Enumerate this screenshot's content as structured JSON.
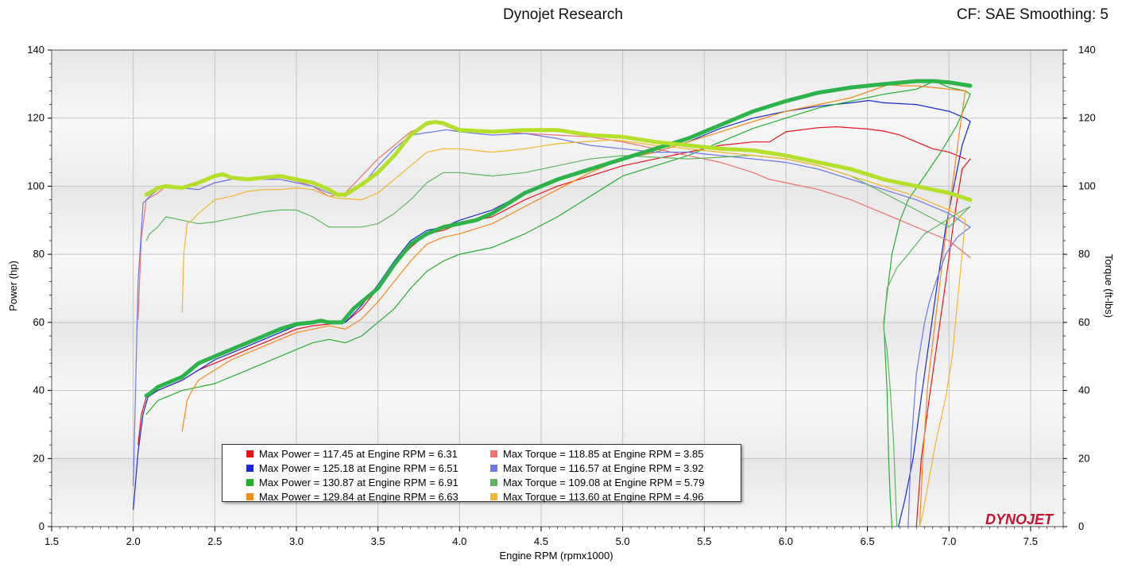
{
  "header": {
    "title": "Dynojet Research",
    "cf": "CF: SAE Smoothing: 5"
  },
  "logo": "DYNOJET",
  "chart_data": {
    "type": "line",
    "title": "Dynojet Research",
    "xlabel": "Engine RPM (rpmx1000)",
    "ylabel": "Power (hp)",
    "y2label": "Torque (ft-lbs)",
    "xlim": [
      1.5,
      7.7
    ],
    "ylim": [
      0,
      140
    ],
    "y2lim": [
      0,
      140
    ],
    "xticks": [
      1.5,
      2.0,
      2.5,
      3.0,
      3.5,
      4.0,
      4.5,
      5.0,
      5.5,
      6.0,
      6.5,
      7.0,
      7.5
    ],
    "xtick_labels": [
      "1.5",
      "2.0",
      "2.5",
      "3.0",
      "3.5",
      "4.0",
      "4.5",
      "5.0",
      "5.5",
      "6.0",
      "6.5",
      "7.0",
      "7.5"
    ],
    "yticks": [
      0,
      20,
      40,
      60,
      80,
      100,
      120,
      140
    ],
    "ytick_labels": [
      "0",
      "20",
      "40",
      "60",
      "80",
      "100",
      "120",
      "140"
    ],
    "colors": {
      "power_red": "#e8141c",
      "power_blue": "#1a28d8",
      "power_green": "#22b12c",
      "power_orange": "#f58a18",
      "torque_red": "#f07070",
      "torque_blue": "#6b78ee",
      "torque_green": "#5cb85c",
      "torque_yellow": "#f7b42c",
      "highlight_power": "#2cb34a",
      "highlight_torque": "#b4e02c"
    },
    "series": [
      {
        "key": "power_red",
        "axis": "left",
        "width": 1.2,
        "x": [
          2.03,
          2.05,
          2.08,
          2.15,
          2.2,
          2.3,
          2.4,
          2.5,
          2.6,
          2.7,
          2.8,
          2.9,
          3.0,
          3.1,
          3.2,
          3.3,
          3.4,
          3.5,
          3.6,
          3.7,
          3.8,
          3.9,
          4.0,
          4.2,
          4.4,
          4.5,
          4.6,
          4.8,
          5.0,
          5.2,
          5.4,
          5.6,
          5.8,
          5.9,
          6.0,
          6.2,
          6.31,
          6.5,
          6.6,
          6.7,
          6.8,
          6.9,
          7.0,
          7.1
        ],
        "y": [
          24,
          33,
          38,
          40,
          41,
          43,
          46,
          48,
          50,
          52,
          54,
          56,
          58,
          59,
          59.5,
          60,
          64,
          70,
          77,
          82,
          86,
          87,
          89,
          91,
          96,
          98,
          100,
          103,
          106,
          108,
          110,
          112,
          113,
          113,
          116,
          117.2,
          117.45,
          116.8,
          116.2,
          115,
          113,
          111,
          110,
          108
        ]
      },
      {
        "key": "power_red_drop",
        "axis": "left",
        "width": 1.2,
        "x": [
          7.13,
          7.08,
          7.03,
          6.98,
          6.93,
          6.88,
          6.83,
          6.8
        ],
        "y": [
          108,
          105,
          90,
          72,
          55,
          38,
          20,
          0
        ]
      },
      {
        "key": "power_blue",
        "axis": "left",
        "width": 1.2,
        "x": [
          2.0,
          2.03,
          2.06,
          2.09,
          2.15,
          2.2,
          2.3,
          2.4,
          2.5,
          2.6,
          2.7,
          2.8,
          2.9,
          3.0,
          3.1,
          3.2,
          3.3,
          3.4,
          3.5,
          3.6,
          3.7,
          3.8,
          3.9,
          4.0,
          4.2,
          4.4,
          4.6,
          4.8,
          5.0,
          5.2,
          5.4,
          5.6,
          5.8,
          6.0,
          6.2,
          6.4,
          6.51,
          6.6,
          6.8,
          7.0,
          7.1,
          7.13
        ],
        "y": [
          5,
          22,
          33,
          38,
          40,
          41,
          43,
          46,
          49,
          51,
          53,
          55,
          57,
          59,
          60,
          60,
          60,
          65,
          71,
          78,
          84,
          87,
          88,
          90,
          93,
          98,
          102,
          105,
          108,
          110,
          113,
          117,
          120,
          122,
          123.5,
          124.5,
          125.18,
          124.5,
          124,
          122,
          120,
          119
        ]
      },
      {
        "key": "power_blue_drop",
        "axis": "left",
        "width": 1.2,
        "x": [
          7.13,
          7.08,
          7.03,
          6.98,
          6.93,
          6.88,
          6.83,
          6.78,
          6.73,
          6.69
        ],
        "y": [
          119,
          112,
          100,
          88,
          72,
          55,
          38,
          20,
          8,
          0
        ]
      },
      {
        "key": "power_green",
        "axis": "left",
        "width": 1.2,
        "x": [
          2.08,
          2.15,
          2.2,
          2.3,
          2.4,
          2.5,
          2.6,
          2.7,
          2.8,
          2.9,
          3.0,
          3.1,
          3.2,
          3.3,
          3.4,
          3.5,
          3.6,
          3.7,
          3.8,
          3.9,
          4.0,
          4.2,
          4.4,
          4.6,
          4.8,
          5.0,
          5.2,
          5.4,
          5.6,
          5.8,
          6.0,
          6.2,
          6.4,
          6.6,
          6.8,
          6.91,
          7.0,
          7.1,
          7.13
        ],
        "y": [
          33,
          37,
          38,
          40,
          41,
          42,
          44,
          46,
          48,
          50,
          52,
          54,
          55,
          54,
          56,
          60,
          64,
          70,
          75,
          78,
          80,
          82,
          86,
          91,
          97,
          103,
          106,
          109,
          113,
          117,
          120,
          123,
          125,
          127,
          128.5,
          130.87,
          129,
          128,
          127
        ]
      },
      {
        "key": "power_green_drop",
        "axis": "left",
        "width": 1.2,
        "x": [
          7.13,
          7.05,
          6.95,
          6.85,
          6.75,
          6.7,
          6.65,
          6.6,
          6.62,
          6.63,
          6.64,
          6.65
        ],
        "y": [
          127,
          118,
          110,
          103,
          96,
          90,
          80,
          60,
          40,
          20,
          8,
          0
        ]
      },
      {
        "key": "power_orange",
        "axis": "left",
        "width": 1.2,
        "x": [
          2.3,
          2.33,
          2.36,
          2.4,
          2.5,
          2.6,
          2.7,
          2.8,
          2.9,
          3.0,
          3.1,
          3.2,
          3.3,
          3.4,
          3.5,
          3.6,
          3.7,
          3.8,
          3.9,
          4.0,
          4.2,
          4.4,
          4.6,
          4.8,
          5.0,
          5.2,
          5.4,
          5.6,
          5.8,
          6.0,
          6.2,
          6.4,
          6.63,
          6.7,
          6.8,
          6.9,
          7.0,
          7.1
        ],
        "y": [
          28,
          37,
          40,
          43,
          46,
          49,
          51,
          53,
          55,
          57,
          58,
          59,
          58,
          61,
          66,
          72,
          78,
          83,
          85,
          86,
          89,
          94,
          99,
          104,
          108,
          110,
          113,
          116,
          119,
          122,
          124,
          126,
          129.84,
          129.5,
          129.5,
          129,
          128.5,
          128
        ]
      },
      {
        "key": "power_orange_drop",
        "axis": "left",
        "width": 1.2,
        "x": [
          7.1,
          7.07,
          7.02,
          6.97,
          6.92,
          6.87,
          6.84,
          6.82
        ],
        "y": [
          128,
          118,
          100,
          82,
          62,
          42,
          20,
          0
        ]
      },
      {
        "key": "torque_red",
        "axis": "right",
        "width": 1.2,
        "x": [
          2.03,
          2.05,
          2.08,
          2.15,
          2.2,
          2.3,
          2.4,
          2.5,
          2.6,
          2.7,
          2.8,
          2.9,
          3.0,
          3.1,
          3.2,
          3.3,
          3.4,
          3.5,
          3.6,
          3.7,
          3.85,
          3.9,
          4.0,
          4.2,
          4.4,
          4.6,
          4.8,
          5.0,
          5.2,
          5.4,
          5.6,
          5.8,
          5.9,
          6.0,
          6.2,
          6.4,
          6.6,
          6.8,
          7.0,
          7.13
        ],
        "y": [
          61,
          85,
          96,
          98,
          100,
          99.5,
          99,
          101,
          102,
          102,
          102,
          102.5,
          101.5,
          100,
          97,
          98,
          103,
          108,
          112,
          116,
          118.85,
          118,
          116,
          116,
          115.5,
          115,
          114.5,
          113,
          111,
          109,
          107,
          104,
          102,
          101,
          99,
          96,
          92,
          88,
          84,
          79
        ]
      },
      {
        "key": "torque_blue",
        "axis": "right",
        "width": 1.2,
        "x": [
          2.0,
          2.03,
          2.06,
          2.1,
          2.15,
          2.2,
          2.3,
          2.4,
          2.5,
          2.6,
          2.7,
          2.8,
          2.9,
          3.0,
          3.1,
          3.2,
          3.3,
          3.4,
          3.5,
          3.6,
          3.7,
          3.92,
          4.0,
          4.2,
          4.4,
          4.6,
          4.8,
          5.0,
          5.2,
          5.4,
          5.6,
          5.8,
          6.0,
          6.2,
          6.4,
          6.6,
          6.8,
          7.0,
          7.13
        ],
        "y": [
          12,
          72,
          95,
          97,
          99,
          100,
          99.5,
          99,
          101,
          102,
          102,
          102,
          102,
          101,
          100,
          98,
          97,
          100,
          106,
          111,
          115,
          116.57,
          116,
          115,
          115.5,
          114,
          112,
          111,
          110,
          110,
          109,
          108,
          107,
          105,
          102,
          99,
          96,
          92,
          88
        ]
      },
      {
        "key": "torque_blue_tail",
        "axis": "right",
        "width": 1.2,
        "x": [
          7.13,
          7.05,
          6.98,
          6.92,
          6.88,
          6.85,
          6.8,
          6.77,
          6.75
        ],
        "y": [
          88,
          85,
          80,
          72,
          66,
          60,
          45,
          25,
          0
        ]
      },
      {
        "key": "torque_green",
        "axis": "right",
        "width": 1.2,
        "x": [
          2.08,
          2.1,
          2.15,
          2.2,
          2.25,
          2.3,
          2.4,
          2.5,
          2.6,
          2.7,
          2.8,
          2.9,
          3.0,
          3.1,
          3.2,
          3.25,
          3.4,
          3.5,
          3.6,
          3.7,
          3.8,
          3.9,
          4.0,
          4.2,
          4.4,
          4.6,
          4.8,
          5.0,
          5.2,
          5.4,
          5.6,
          5.79,
          6.0,
          6.2,
          6.4,
          6.6,
          6.8,
          7.0,
          7.13
        ],
        "y": [
          84,
          86,
          88,
          91,
          90.5,
          90,
          89,
          89.5,
          90.5,
          91.5,
          92.5,
          93,
          93,
          91,
          88,
          88,
          88,
          89,
          92,
          96,
          101,
          104,
          104,
          103,
          104,
          106,
          108,
          109,
          108.5,
          108,
          108.5,
          109.08,
          108,
          106,
          103,
          98,
          93,
          88,
          94
        ]
      },
      {
        "key": "torque_green_tail",
        "axis": "right",
        "width": 1.2,
        "x": [
          7.13,
          7.05,
          6.95,
          6.85,
          6.75,
          6.68,
          6.62,
          6.6,
          6.62,
          6.64,
          6.66,
          6.68
        ],
        "y": [
          94,
          92,
          89,
          86,
          80,
          76,
          70,
          58,
          52,
          40,
          25,
          0
        ]
      },
      {
        "key": "torque_yellow",
        "axis": "right",
        "width": 1.2,
        "x": [
          2.3,
          2.31,
          2.33,
          2.36,
          2.4,
          2.5,
          2.6,
          2.7,
          2.8,
          2.9,
          3.0,
          3.1,
          3.2,
          3.25,
          3.4,
          3.5,
          3.6,
          3.7,
          3.8,
          3.9,
          4.0,
          4.2,
          4.4,
          4.6,
          4.8,
          4.96,
          5.2,
          5.4,
          5.6,
          5.8,
          6.0,
          6.2,
          6.4,
          6.6,
          6.8,
          7.0,
          7.1
        ],
        "y": [
          63,
          80,
          89,
          90,
          92,
          96,
          97,
          98.5,
          99,
          99,
          99.5,
          99,
          97,
          96.5,
          96,
          98,
          102,
          106,
          110,
          111,
          111,
          110,
          111,
          112.5,
          113.2,
          113.6,
          112,
          111,
          110,
          109,
          108,
          106,
          103,
          100,
          97,
          93,
          90
        ]
      },
      {
        "key": "torque_yellow_tail",
        "axis": "right",
        "width": 1.2,
        "x": [
          7.1,
          7.08,
          7.05,
          7.02,
          6.98,
          6.92,
          6.87,
          6.84,
          6.82
        ],
        "y": [
          90,
          80,
          65,
          50,
          38,
          25,
          12,
          4,
          0
        ]
      },
      {
        "key": "highlight_power",
        "axis": "left",
        "width": 5,
        "x": [
          2.08,
          2.1,
          2.15,
          2.2,
          2.3,
          2.4,
          2.5,
          2.6,
          2.7,
          2.8,
          2.9,
          3.0,
          3.1,
          3.15,
          3.2,
          3.28,
          3.35,
          3.5,
          3.6,
          3.7,
          3.8,
          3.9,
          4.0,
          4.1,
          4.2,
          4.4,
          4.6,
          4.8,
          5.0,
          5.2,
          5.4,
          5.6,
          5.8,
          6.0,
          6.2,
          6.4,
          6.6,
          6.8,
          6.91,
          7.0,
          7.13
        ],
        "y": [
          38.5,
          39,
          41,
          42,
          44,
          48,
          50,
          52,
          54,
          56,
          58,
          59.5,
          60,
          60.5,
          60,
          60,
          64,
          70,
          77,
          83,
          86,
          88,
          89,
          90,
          92,
          98,
          102,
          105,
          108,
          111,
          114,
          118,
          122,
          125,
          127.5,
          129,
          130,
          130.87,
          130.87,
          130.5,
          129.5
        ]
      },
      {
        "key": "highlight_torque",
        "axis": "right",
        "width": 5,
        "x": [
          2.08,
          2.1,
          2.15,
          2.2,
          2.3,
          2.4,
          2.5,
          2.55,
          2.6,
          2.7,
          2.8,
          2.9,
          3.0,
          3.1,
          3.2,
          3.25,
          3.3,
          3.4,
          3.5,
          3.6,
          3.7,
          3.8,
          3.85,
          3.9,
          4.0,
          4.2,
          4.4,
          4.6,
          4.8,
          5.0,
          5.2,
          5.4,
          5.6,
          5.8,
          6.0,
          6.2,
          6.4,
          6.6,
          6.8,
          7.0,
          7.13
        ],
        "y": [
          97.5,
          98,
          99.5,
          100,
          99.5,
          101,
          103,
          103.5,
          102.5,
          102,
          102.5,
          103,
          102,
          101,
          99,
          97.5,
          97.5,
          100.5,
          104,
          109,
          115,
          118.5,
          118.85,
          118.5,
          116.5,
          116,
          116.5,
          116.5,
          115,
          114.5,
          113,
          112,
          111,
          110.5,
          109,
          107,
          105,
          102,
          100,
          98,
          96
        ]
      }
    ]
  },
  "legend": {
    "left": [
      {
        "label": "Max Power = 117.45 at Engine RPM = 6.31",
        "color": "#e8141c"
      },
      {
        "label": "Max Power = 125.18 at Engine RPM = 6.51",
        "color": "#1a28d8"
      },
      {
        "label": "Max Power = 130.87 at Engine RPM = 6.91",
        "color": "#22b12c"
      },
      {
        "label": "Max Power = 129.84 at Engine RPM = 6.63",
        "color": "#f58a18"
      }
    ],
    "right": [
      {
        "label": "Max Torque = 118.85 at Engine RPM = 3.85",
        "color": "#f07070"
      },
      {
        "label": "Max Torque = 116.57 at Engine RPM = 3.92",
        "color": "#6b78ee"
      },
      {
        "label": "Max Torque = 109.08 at Engine RPM = 5.79",
        "color": "#5cb85c"
      },
      {
        "label": "Max Torque = 113.60 at Engine RPM = 4.96",
        "color": "#f7b42c"
      }
    ]
  }
}
